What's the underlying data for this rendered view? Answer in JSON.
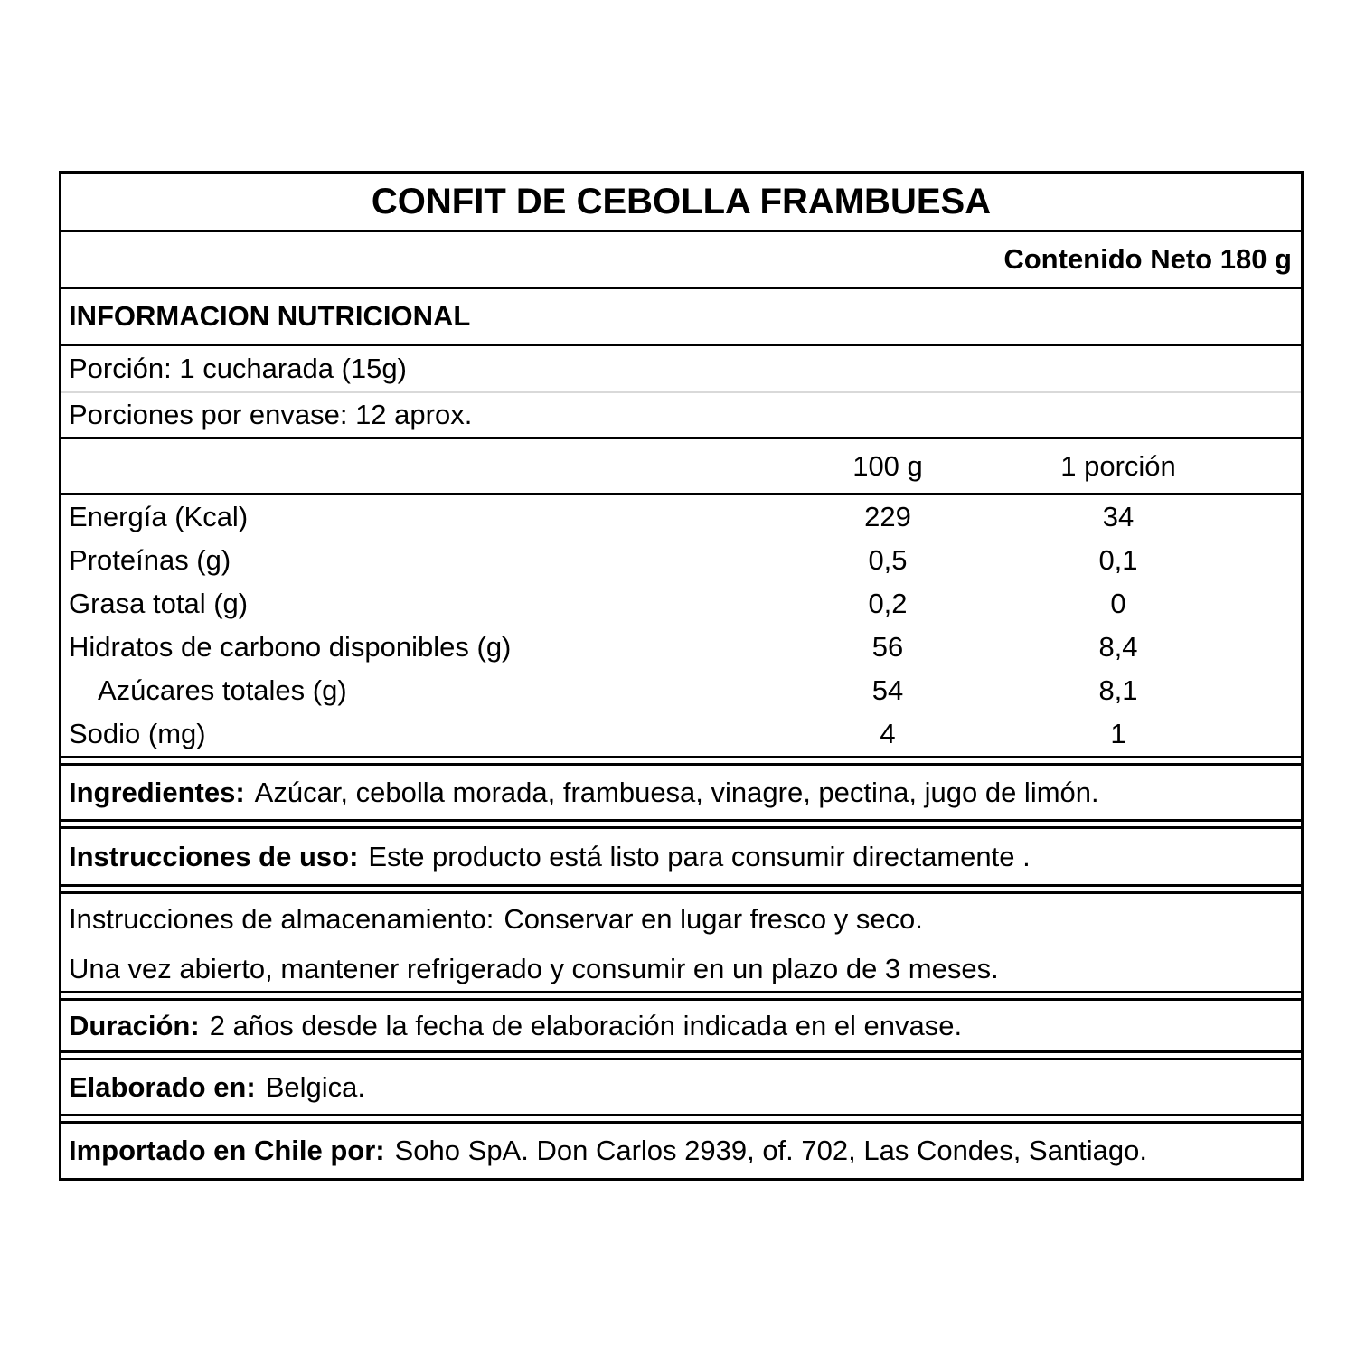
{
  "label": {
    "title": "CONFIT DE CEBOLLA FRAMBUESA",
    "net_content": "Contenido Neto 180 g",
    "nutrition_header": "INFORMACION NUTRICIONAL",
    "serving_size": "Porción: 1 cucharada (15g)",
    "servings_per_container": "Porciones por envase: 12 aprox.",
    "columns": {
      "per_100g": "100 g",
      "per_portion": "1 porción"
    },
    "nutrients": [
      {
        "name": "Energía (Kcal)",
        "per100": "229",
        "portion": "34"
      },
      {
        "name": "Proteínas (g)",
        "per100": "0,5",
        "portion": "0,1"
      },
      {
        "name": "Grasa total (g)",
        "per100": "0,2",
        "portion": "0"
      },
      {
        "name": "Hidratos de carbono disponibles (g)",
        "per100": "56",
        "portion": "8,4"
      },
      {
        "name": "Azúcares totales (g)",
        "per100": "54",
        "portion": "8,1"
      },
      {
        "name": "Sodio (mg)",
        "per100": "4",
        "portion": "1"
      }
    ],
    "sections": {
      "ingredients": {
        "label": "Ingredientes:",
        "text": "Azúcar, cebolla morada, frambuesa, vinagre, pectina, jugo de limón."
      },
      "usage": {
        "label": "Instrucciones de uso:",
        "text": "Este producto está listo para consumir directamente ."
      },
      "storage": {
        "label": "Instrucciones de almacenamiento:",
        "text": "Conservar en lugar fresco y seco.",
        "text2": "Una vez abierto, mantener refrigerado y consumir en un plazo de 3 meses."
      },
      "duration": {
        "label": "Duración:",
        "text": "2 años desde la fecha de elaboración indicada en el envase."
      },
      "made_in": {
        "label": "Elaborado en:",
        "text": "Belgica."
      },
      "importer": {
        "label": "Importado en Chile por:",
        "text": "Soho SpA. Don Carlos 2939, of. 702, Las Condes, Santiago."
      }
    }
  },
  "colors": {
    "border": "#000000",
    "light_divider": "#d9d9d9",
    "background": "#ffffff",
    "text": "#000000"
  }
}
